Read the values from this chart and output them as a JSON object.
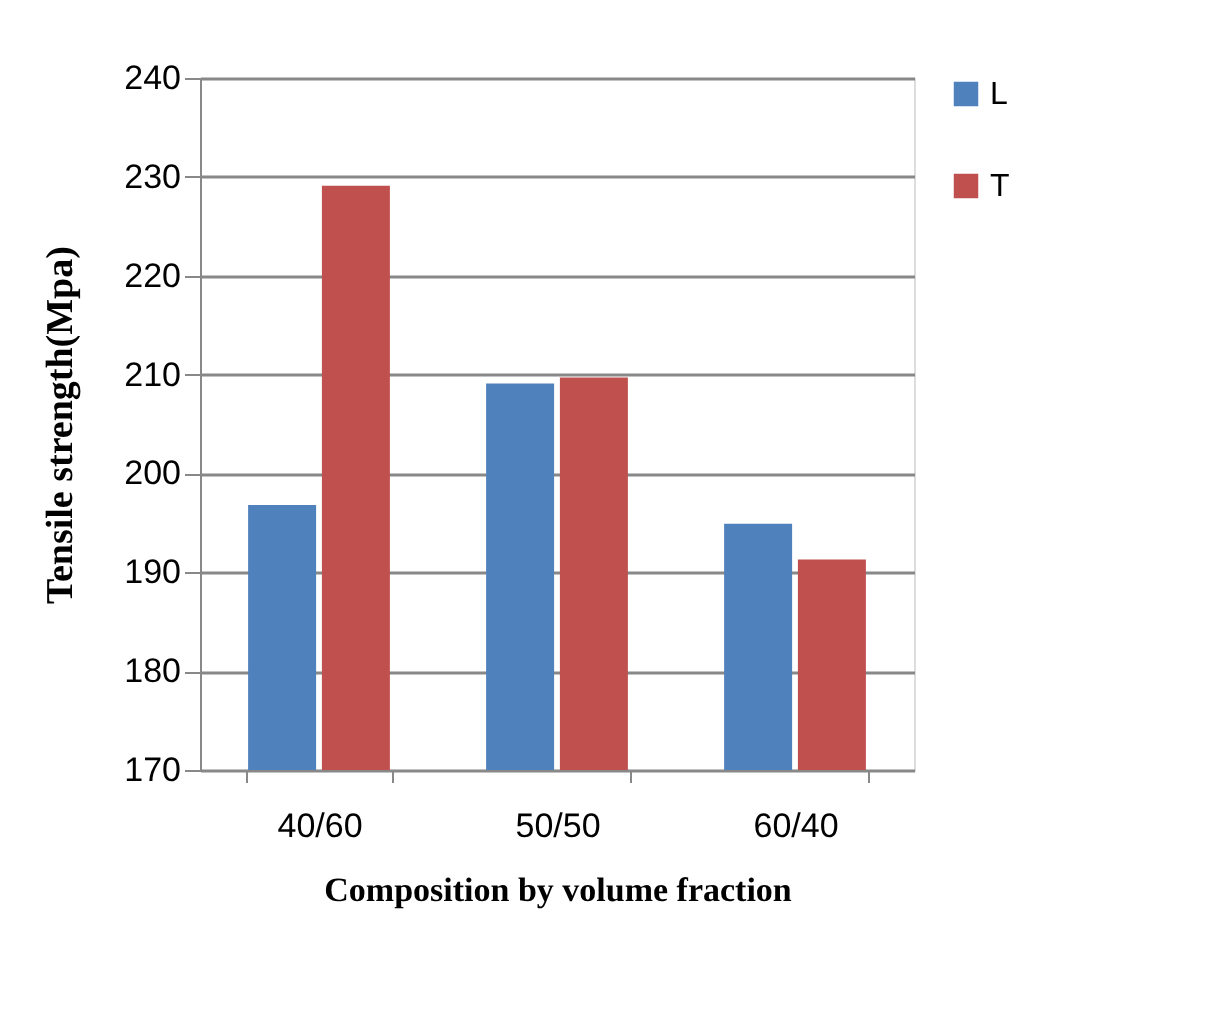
{
  "chart_data": {
    "type": "bar",
    "xlabel": "Composition by volume fraction",
    "ylabel": "Tensile strength(Mpa)",
    "categories": [
      "40/60",
      "50/50",
      "60/40"
    ],
    "series": [
      {
        "name": "L",
        "color": "#4f81bd",
        "values": [
          196.8,
          209.1,
          194.9
        ]
      },
      {
        "name": "T",
        "color": "#c0504d",
        "values": [
          229.1,
          209.7,
          191.3
        ]
      }
    ],
    "ylim": [
      170,
      240
    ],
    "yticks": [
      170,
      180,
      190,
      200,
      210,
      220,
      230,
      240
    ],
    "grid": "y",
    "legend": "right"
  }
}
